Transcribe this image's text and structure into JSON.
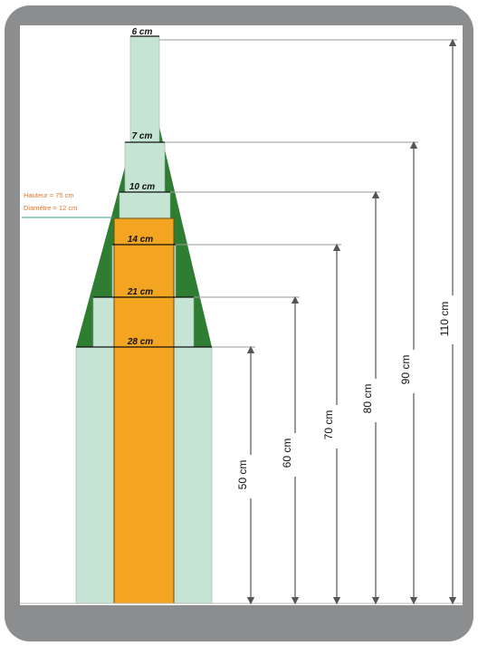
{
  "tier_widths": [
    "6 cm",
    "7 cm",
    "10 cm",
    "14 cm",
    "21 cm",
    "28 cm"
  ],
  "heights": [
    "50 cm",
    "60 cm",
    "70 cm",
    "80 cm",
    "90 cm",
    "110 cm"
  ],
  "annotation": {
    "line1": "Hauteur = 75 cm",
    "line2": "Diamètre = 12 cm"
  },
  "colors": {
    "frame": "#8c8d8f",
    "mold": "#c5e4d3",
    "cone": "#2f7d32",
    "core": "#f3a521",
    "annotation": "#e0782c"
  }
}
